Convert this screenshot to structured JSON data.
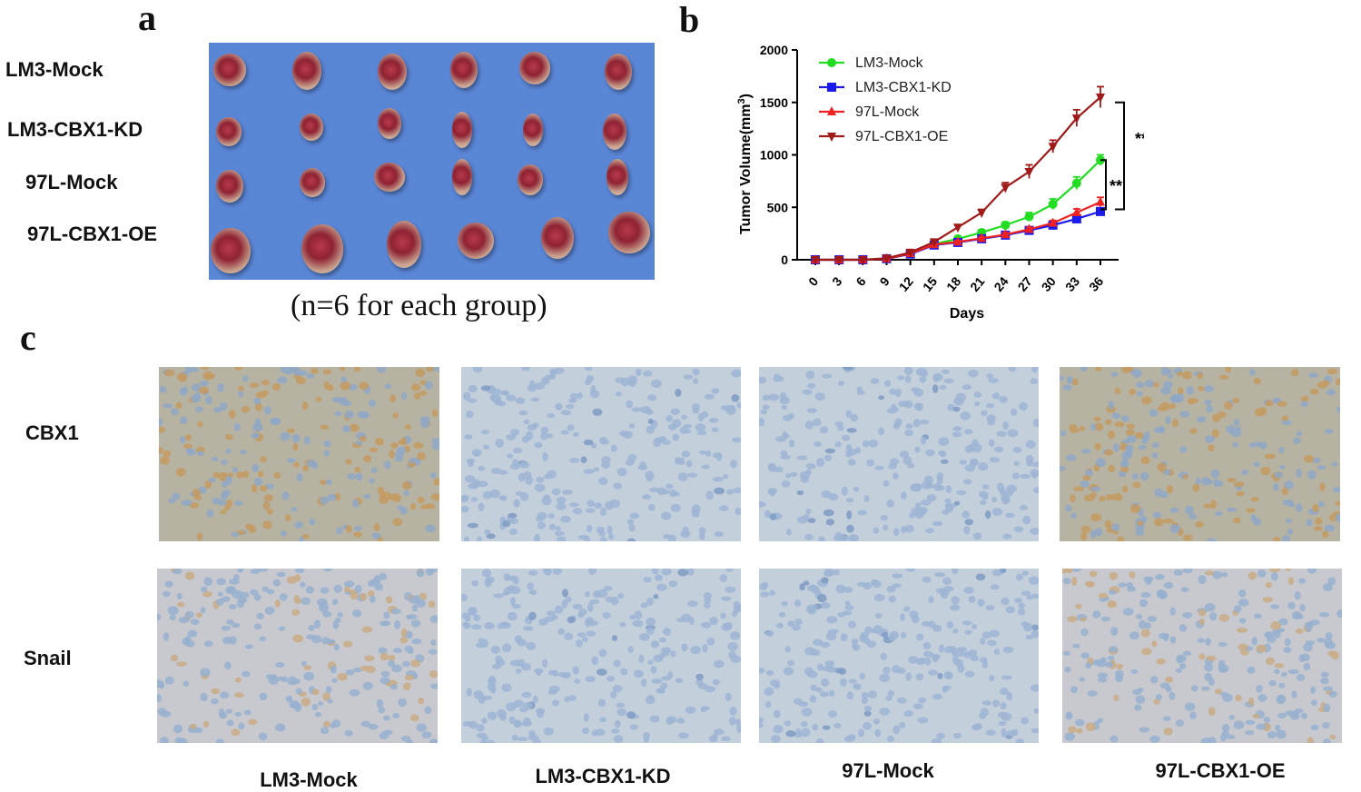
{
  "panels": {
    "a": "a",
    "b": "b",
    "c": "c"
  },
  "panel_a": {
    "row_labels": [
      "LM3-Mock",
      "LM3-CBX1-KD",
      "97L-Mock",
      "97L-CBX1-OE"
    ],
    "caption": "(n=6 for each group)"
  },
  "panel_c": {
    "row_labels": [
      "CBX1",
      "Snail"
    ],
    "column_labels": [
      "LM3-Mock",
      "LM3-CBX1-KD",
      "97L-Mock",
      "97L-CBX1-OE"
    ]
  },
  "colors": {
    "photo_background": "#5a86d6",
    "ihc_stained": "#c9a97f",
    "ihc_unstained": "#a9bfd8"
  },
  "chart_data": {
    "type": "line",
    "title": "",
    "xlabel": "Days",
    "ylabel": "Tumor Volume(mm³)",
    "ylabel_base": "Tumor Volume(mm",
    "ylabel_sup": "3",
    "ylabel_end": ")",
    "x": [
      0,
      3,
      6,
      9,
      12,
      15,
      18,
      21,
      24,
      27,
      30,
      33,
      36
    ],
    "x_tick_labels": [
      "0",
      "3",
      "6",
      "9",
      "12",
      "15",
      "18",
      "21",
      "24",
      "27",
      "30",
      "33",
      "36"
    ],
    "ylim": [
      0,
      2000
    ],
    "y_ticks": [
      0,
      500,
      1000,
      1500,
      2000
    ],
    "y_tick_labels": [
      "0",
      "500",
      "1000",
      "1500",
      "2000"
    ],
    "legend_position": "top-left",
    "series": [
      {
        "name": "LM3-Mock",
        "color": "#22dd22",
        "marker": "circle",
        "values": [
          0,
          0,
          0,
          10,
          60,
          150,
          200,
          260,
          330,
          410,
          530,
          730,
          950
        ],
        "errors": [
          0,
          0,
          0,
          5,
          10,
          15,
          20,
          25,
          30,
          40,
          50,
          60,
          50
        ]
      },
      {
        "name": "LM3-CBX1-KD",
        "color": "#1a1aee",
        "marker": "square",
        "values": [
          0,
          0,
          0,
          10,
          55,
          140,
          165,
          200,
          235,
          280,
          330,
          390,
          460
        ],
        "errors": [
          0,
          0,
          0,
          5,
          8,
          10,
          12,
          15,
          15,
          20,
          20,
          25,
          30
        ]
      },
      {
        "name": "97L-Mock",
        "color": "#ee2222",
        "marker": "triangle-up",
        "values": [
          0,
          0,
          0,
          10,
          60,
          145,
          170,
          205,
          240,
          290,
          350,
          450,
          550
        ],
        "errors": [
          0,
          0,
          0,
          5,
          8,
          10,
          12,
          15,
          18,
          20,
          25,
          35,
          45
        ]
      },
      {
        "name": "97L-CBX1-OE",
        "color": "#a01a1a",
        "marker": "triangle-down",
        "values": [
          0,
          0,
          0,
          15,
          70,
          170,
          310,
          450,
          690,
          840,
          1080,
          1350,
          1550
        ],
        "errors": [
          0,
          0,
          0,
          5,
          10,
          15,
          20,
          30,
          45,
          65,
          60,
          80,
          100
        ]
      }
    ],
    "annotations": [
      {
        "text": "**",
        "between": [
          "97L-CBX1-OE",
          "97L-Mock"
        ]
      },
      {
        "text": "**",
        "between": [
          "LM3-Mock",
          "LM3-CBX1-KD"
        ]
      }
    ]
  }
}
